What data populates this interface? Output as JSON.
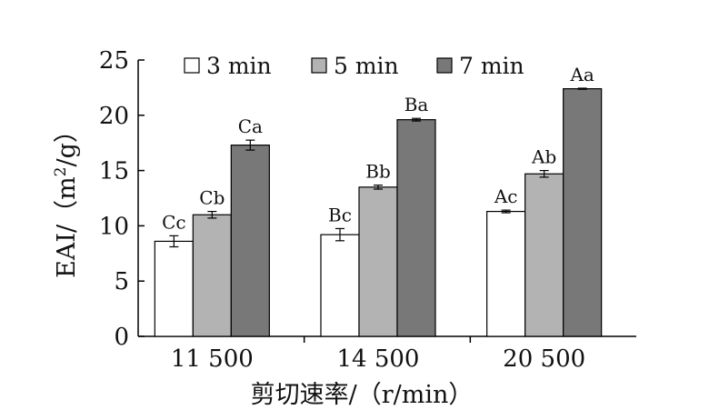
{
  "chart_data": {
    "type": "bar",
    "xlabel": "剪切速率/（r/min）",
    "ylabel": "EAI/（m²/g）",
    "ylabel_parts": {
      "pre": "EAI/（m",
      "sup": "2",
      "post": "/g）"
    },
    "categories": [
      "11 500",
      "14 500",
      "20 500"
    ],
    "ylim": [
      0,
      25
    ],
    "yticks": [
      0,
      5,
      10,
      15,
      20,
      25
    ],
    "legend_position": "top",
    "series": [
      {
        "name": "3 min",
        "color": "#ffffff",
        "values": [
          8.6,
          9.2,
          11.3
        ],
        "errors": [
          0.5,
          0.55,
          0.12
        ],
        "labels": [
          "Cc",
          "Bc",
          "Ac"
        ]
      },
      {
        "name": "5 min",
        "color": "#b3b3b3",
        "values": [
          11.0,
          13.5,
          14.7
        ],
        "errors": [
          0.3,
          0.18,
          0.3
        ],
        "labels": [
          "Cb",
          "Bb",
          "Ab"
        ]
      },
      {
        "name": "7 min",
        "color": "#787878",
        "values": [
          17.3,
          19.6,
          22.4
        ],
        "errors": [
          0.45,
          0.12,
          0.05
        ],
        "labels": [
          "Ca",
          "Ba",
          "Aa"
        ]
      }
    ]
  }
}
